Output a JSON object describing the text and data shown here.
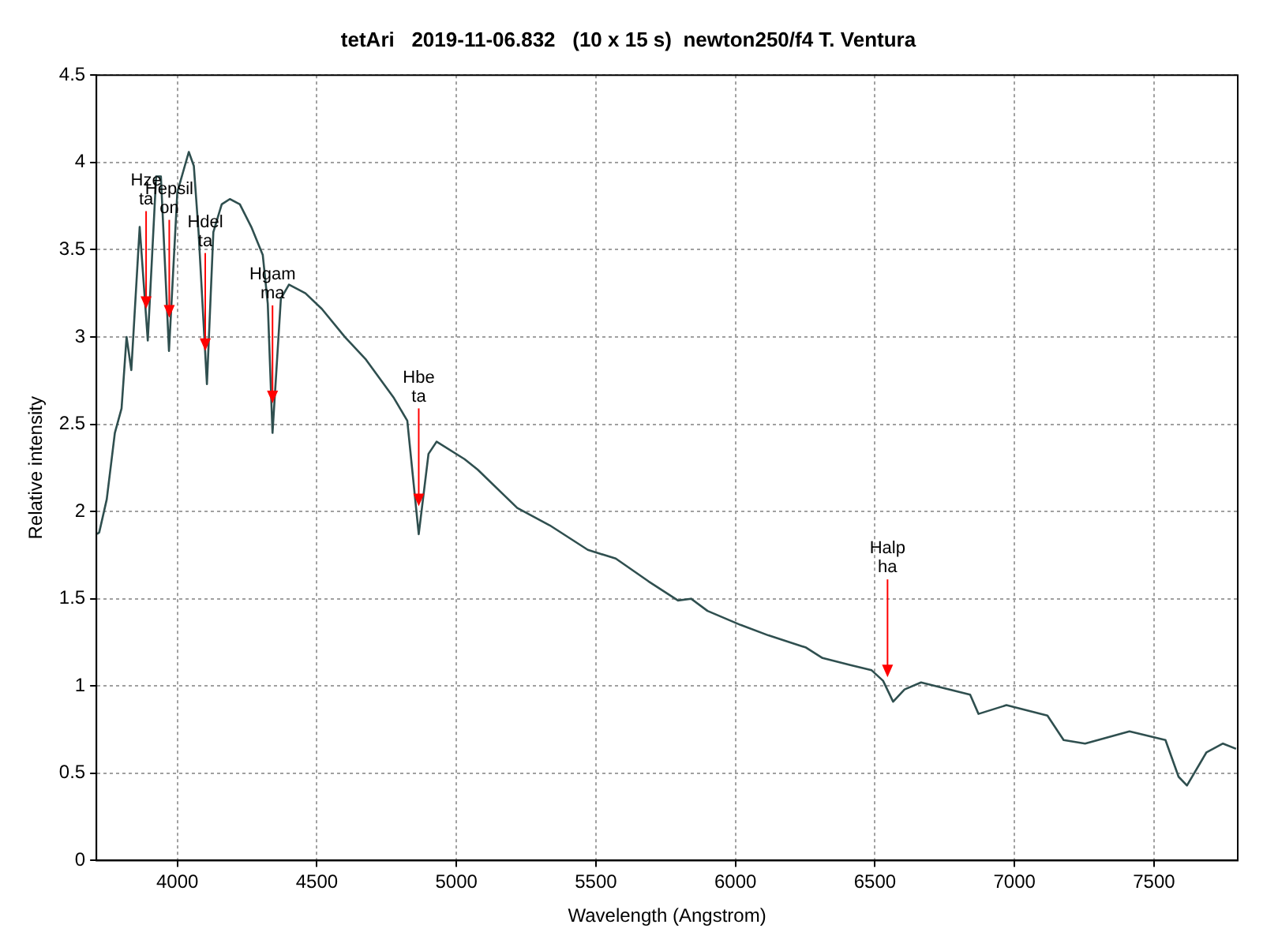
{
  "chart_data": {
    "type": "line",
    "title": "tetAri   2019-11-06.832   (10 x 15 s)  newton250/f4 T. Ventura",
    "xlabel": "Wavelength (Angstrom)",
    "ylabel": "Relative intensity",
    "xlim": [
      3710,
      7800
    ],
    "xticks": [
      4000,
      4500,
      5000,
      5500,
      6000,
      6500,
      7000,
      7500
    ],
    "ylim": [
      0,
      4.5
    ],
    "yticks": [
      0,
      0.5,
      1,
      1.5,
      2,
      2.5,
      3,
      3.5,
      4,
      4.5
    ],
    "grid": true,
    "legend": false,
    "marker": "none",
    "line_style": "solid",
    "series": [
      {
        "color": "#2f4f4f",
        "x": [
          3712,
          3720,
          3747,
          3776,
          3800,
          3818,
          3835,
          3865,
          3894,
          3924,
          3941,
          3970,
          4000,
          4041,
          4059,
          4076,
          4106,
          4129,
          4159,
          4188,
          4224,
          4265,
          4306,
          4324,
          4341,
          4371,
          4400,
          4459,
          4518,
          4600,
          4676,
          4776,
          4824,
          4865,
          4900,
          4929,
          5029,
          5076,
          5218,
          5335,
          5471,
          5571,
          5688,
          5794,
          5841,
          5900,
          6018,
          6118,
          6253,
          6312,
          6412,
          6488,
          6529,
          6565,
          6606,
          6665,
          6841,
          6871,
          6971,
          7118,
          7176,
          7253,
          7412,
          7541,
          7588,
          7618,
          7688,
          7747,
          7794
        ],
        "values": [
          1.87,
          1.88,
          2.07,
          2.45,
          2.59,
          3.0,
          2.81,
          3.63,
          2.98,
          3.92,
          3.92,
          2.92,
          3.83,
          4.06,
          3.98,
          3.6,
          2.73,
          3.6,
          3.76,
          3.79,
          3.76,
          3.63,
          3.47,
          3.19,
          2.45,
          3.22,
          3.3,
          3.25,
          3.16,
          3.0,
          2.87,
          2.65,
          2.52,
          1.87,
          2.33,
          2.4,
          2.3,
          2.24,
          2.02,
          1.92,
          1.78,
          1.73,
          1.6,
          1.49,
          1.5,
          1.43,
          1.35,
          1.29,
          1.22,
          1.16,
          1.12,
          1.09,
          1.03,
          0.91,
          0.98,
          1.02,
          0.95,
          0.84,
          0.89,
          0.83,
          0.69,
          0.67,
          0.74,
          0.69,
          0.48,
          0.43,
          0.62,
          0.67,
          0.64
        ]
      }
    ],
    "annotations": [
      {
        "text": "Hze\nta",
        "x": 3888,
        "y": 3.16
      },
      {
        "text": "Hepsil\non",
        "x": 3971,
        "y": 3.11
      },
      {
        "text": "Hdel\nta",
        "x": 4100,
        "y": 2.92
      },
      {
        "text": "Hgam\nma",
        "x": 4341,
        "y": 2.62
      },
      {
        "text": "Hbe\nta",
        "x": 4865,
        "y": 2.03
      },
      {
        "text": "Halp\nha",
        "x": 6545,
        "y": 1.05
      }
    ]
  }
}
